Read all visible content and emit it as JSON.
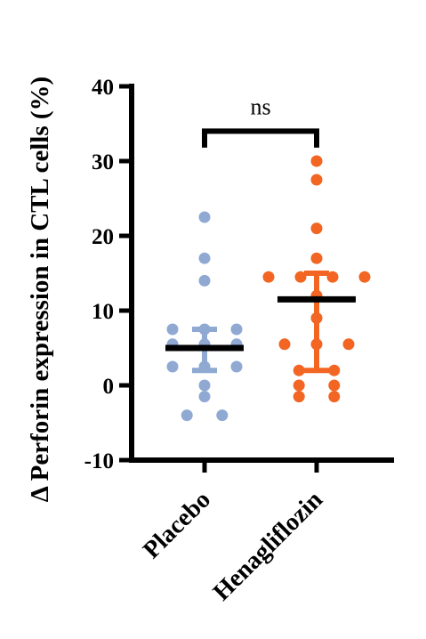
{
  "chart_data": {
    "type": "scatter",
    "title": "",
    "ylabel": "Δ Perforin expression in CTL cells (%)",
    "xlabel": "",
    "ylim": [
      -10,
      40
    ],
    "yticks": [
      -10,
      0,
      10,
      20,
      30,
      40
    ],
    "categories": [
      "Placebo",
      "Henagliflozin"
    ],
    "series": [
      {
        "name": "Placebo",
        "color": "#8fa9d3",
        "values": [
          22.5,
          17.0,
          14.0,
          7.5,
          7.5,
          7.5,
          5.5,
          5.5,
          5.5,
          2.5,
          2.5,
          2.5,
          0,
          -1.5,
          -4.0,
          -4.0
        ],
        "mean": 5.0,
        "error": [
          2.0,
          7.5
        ]
      },
      {
        "name": "Henagliflozin",
        "color": "#f26522",
        "values": [
          30.0,
          27.5,
          21.0,
          17.0,
          14.5,
          14.5,
          14.5,
          14.5,
          12.0,
          9.0,
          5.5,
          5.5,
          5.5,
          2.0,
          2.0,
          0,
          0,
          -1.5,
          -1.5
        ],
        "mean": 11.5,
        "error": [
          2.0,
          15.0
        ]
      }
    ],
    "annotations": [
      {
        "text": "ns",
        "between": [
          "Placebo",
          "Henagliflozin"
        ]
      }
    ]
  }
}
